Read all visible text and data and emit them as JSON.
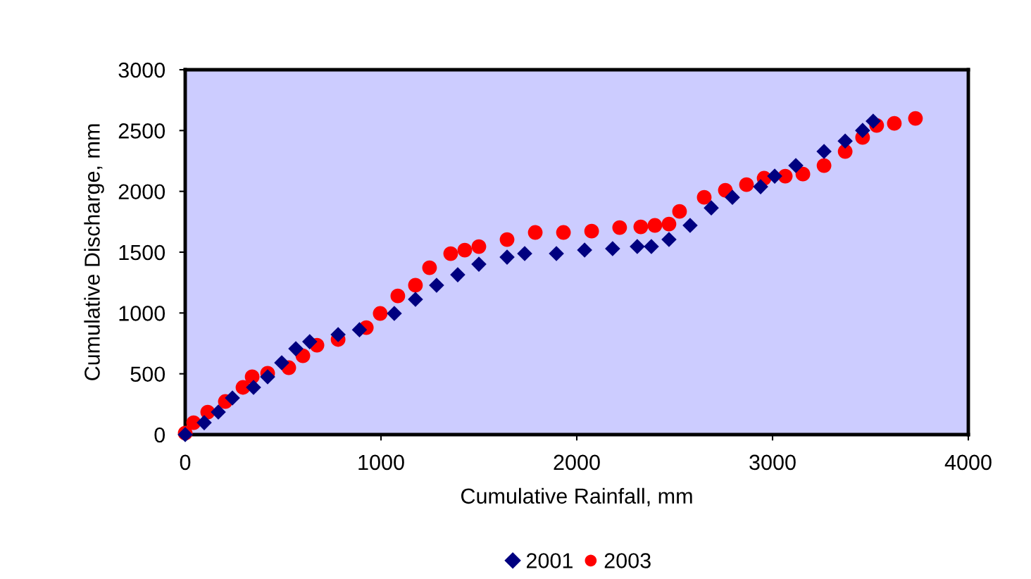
{
  "chart_data": {
    "type": "scatter",
    "xlabel": "Cumulative Rainfall, mm",
    "ylabel": "Cumulative Discharge, mm",
    "xlim": [
      0,
      4000
    ],
    "xticks": [
      0,
      1000,
      2000,
      3000,
      4000
    ],
    "ylim": [
      0,
      3000
    ],
    "yticks": [
      0,
      500,
      1000,
      1500,
      2000,
      2500,
      3000
    ],
    "grid": false,
    "legend": "bottom",
    "series": [
      {
        "name": "2001",
        "color": "#000080",
        "marker": "diamond",
        "x": [
          0,
          97,
          169,
          241,
          349,
          421,
          493,
          565,
          636,
          781,
          890,
          1068,
          1176,
          1284,
          1392,
          1500,
          1644,
          1734,
          1896,
          2040,
          2183,
          2309,
          2381,
          2471,
          2579,
          2687,
          2795,
          2939,
          3011,
          3119,
          3263,
          3371,
          3460,
          3514
        ],
        "values": [
          0,
          98,
          185,
          301,
          388,
          475,
          591,
          706,
          764,
          822,
          862,
          996,
          1112,
          1228,
          1314,
          1401,
          1459,
          1488,
          1488,
          1517,
          1529,
          1546,
          1546,
          1604,
          1720,
          1864,
          1951,
          2038,
          2125,
          2212,
          2328,
          2414,
          2501,
          2577
        ]
      },
      {
        "name": "2003",
        "color": "#ff0000",
        "marker": "circle",
        "x": [
          0,
          43,
          115,
          205,
          295,
          342,
          421,
          529,
          601,
          673,
          781,
          925,
          996,
          1086,
          1176,
          1248,
          1356,
          1428,
          1500,
          1644,
          1788,
          1932,
          2076,
          2219,
          2327,
          2399,
          2471,
          2525,
          2651,
          2759,
          2867,
          2957,
          3065,
          3155,
          3263,
          3371,
          3460,
          3532,
          3622,
          3730
        ],
        "values": [
          12,
          98,
          185,
          272,
          388,
          475,
          504,
          550,
          648,
          735,
          782,
          880,
          996,
          1140,
          1228,
          1372,
          1488,
          1517,
          1546,
          1604,
          1662,
          1662,
          1673,
          1702,
          1708,
          1720,
          1731,
          1835,
          1951,
          2009,
          2055,
          2108,
          2125,
          2142,
          2212,
          2328,
          2443,
          2542,
          2559,
          2600
        ]
      }
    ]
  }
}
